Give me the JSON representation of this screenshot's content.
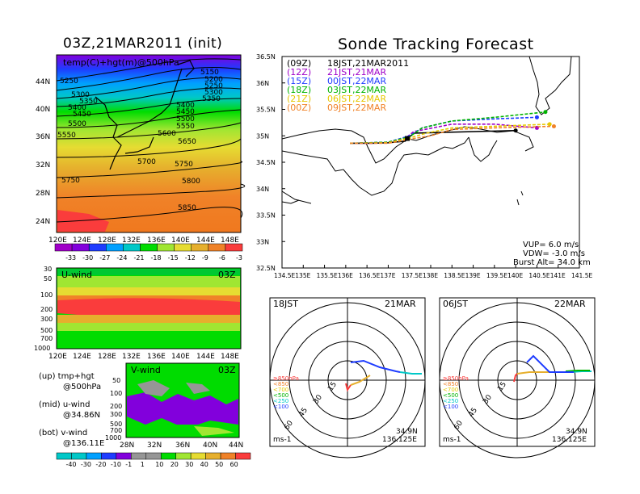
{
  "left_title": "03Z,21MAR2011 (init)",
  "right_title": "Sonde Tracking Forecast",
  "map500": {
    "label": "temp(C)+hgt(m)@500hPa",
    "x_ticks": [
      "120E",
      "124E",
      "128E",
      "132E",
      "136E",
      "140E",
      "144E",
      "148E"
    ],
    "y_ticks": [
      "44N",
      "40N",
      "36N",
      "32N",
      "28N",
      "24N"
    ],
    "contour_labels_left": [
      "5250",
      "5300",
      "5350",
      "5400",
      "5450",
      "5500",
      "5550"
    ],
    "contour_labels_right": [
      "5150",
      "5200",
      "5250",
      "5300",
      "5350",
      "5400",
      "5450",
      "5500",
      "5550"
    ],
    "contour_labels_mid": [
      "5600",
      "5650",
      "5700",
      "5750",
      "5750",
      "5800",
      "5850"
    ],
    "colorbar_labels": [
      "-33",
      "-30",
      "-27",
      "-24",
      "-21",
      "-18",
      "-15",
      "-12",
      "-9",
      "-6",
      "-3"
    ],
    "colors": [
      "#a000c8",
      "#8200dc",
      "#1e3cff",
      "#00a0ff",
      "#00c8c8",
      "#00dc00",
      "#a0e632",
      "#e6dc32",
      "#e6af2d",
      "#f08228",
      "#fa3c3c"
    ]
  },
  "uwind": {
    "label": "U-wind",
    "time": "03Z",
    "y_ticks": [
      "30",
      "50",
      "100",
      "200",
      "300",
      "500",
      "700",
      "1000"
    ],
    "x_ticks": [
      "120E",
      "124E",
      "128E",
      "132E",
      "136E",
      "140E",
      "144E",
      "148E"
    ]
  },
  "vwind": {
    "label": "V-wind",
    "time": "03Z",
    "y_ticks": [
      "50",
      "100",
      "200",
      "300",
      "500",
      "700",
      "1000"
    ],
    "x_ticks": [
      "28N",
      "32N",
      "36N",
      "40N",
      "44N"
    ]
  },
  "notes": [
    {
      "line1": "(up) tmp+hgt",
      "line2": "@500hPa"
    },
    {
      "line1": "(mid) u-wind",
      "line2": "@34.86N"
    },
    {
      "line1": "(bot) v-wind",
      "line2": "@136.11E"
    }
  ],
  "wind_colorbar": {
    "labels": [
      "-40",
      "-30",
      "-20",
      "-10",
      "-1",
      "1",
      "10",
      "20",
      "30",
      "40",
      "50",
      "60"
    ],
    "colors": [
      "#00c8c8",
      "#00a0ff",
      "#1e3cff",
      "#8200dc",
      "#969696",
      "#969696",
      "#00dc00",
      "#a0e632",
      "#e6dc32",
      "#e6af2d",
      "#f08228",
      "#fa3c3c"
    ]
  },
  "track_map": {
    "legend": [
      {
        "code": "(09Z)",
        "text": "18JST,21MAR2011",
        "color": "#000000"
      },
      {
        "code": "(12Z)",
        "text": "21JST,21MAR",
        "color": "#a000c8"
      },
      {
        "code": "(15Z)",
        "text": "00JST,22MAR",
        "color": "#1e3cff"
      },
      {
        "code": "(18Z)",
        "text": "03JST,22MAR",
        "color": "#00b400"
      },
      {
        "code": "(21Z)",
        "text": "06JST,22MAR",
        "color": "#e6c800"
      },
      {
        "code": "(00Z)",
        "text": "09JST,22MAR",
        "color": "#f08228"
      }
    ],
    "lat_ticks": [
      "36.5N",
      "36N",
      "35.5N",
      "35N",
      "34.5N",
      "34N",
      "33.5N",
      "33N",
      "32.5N"
    ],
    "lon_ticks": [
      "134.5E",
      "135E",
      "135.5E",
      "136E",
      "136.5E",
      "137E",
      "137.5E",
      "138E",
      "138.5E",
      "139E",
      "139.5E",
      "140E",
      "140.5E",
      "141E",
      "141.5E"
    ],
    "params": {
      "vup": "VUP=  6.0 m/s",
      "vdw": "VDW= -3.0 m/s",
      "burst": "Burst Alt= 34.0 km"
    }
  },
  "chart_data": [
    {
      "type": "line",
      "title": "Sonde Tracking Forecast",
      "xlabel": "",
      "ylabel": "",
      "xlim": [
        134.5,
        141.5
      ],
      "ylim": [
        32.5,
        36.5
      ],
      "series": [
        {
          "name": "(09Z) 18JST,21MAR2011",
          "x": [
            136.1,
            136.6,
            137.0,
            137.4,
            137.6,
            140.0
          ],
          "y": [
            34.86,
            34.86,
            34.87,
            34.9,
            35.05,
            35.1
          ]
        },
        {
          "name": "(12Z) 21JST,21MAR",
          "x": [
            136.1,
            136.6,
            137.0,
            137.4,
            137.6,
            138.5,
            139.5,
            140.5
          ],
          "y": [
            34.86,
            34.86,
            34.88,
            34.95,
            35.08,
            35.22,
            35.22,
            35.15
          ]
        },
        {
          "name": "(15Z) 00JST,22MAR",
          "x": [
            136.1,
            137.0,
            137.5,
            137.8,
            138.5,
            139.5,
            140.5
          ],
          "y": [
            34.86,
            34.88,
            35.0,
            35.15,
            35.28,
            35.32,
            35.35
          ]
        },
        {
          "name": "(18Z) 03JST,22MAR",
          "x": [
            136.1,
            137.0,
            137.5,
            137.8,
            138.5,
            139.5,
            140.7
          ],
          "y": [
            34.86,
            34.88,
            34.98,
            35.15,
            35.28,
            35.35,
            35.45
          ]
        },
        {
          "name": "(21Z) 06JST,22MAR",
          "x": [
            136.1,
            137.0,
            137.5,
            137.9,
            138.5,
            139.5,
            140.8
          ],
          "y": [
            34.86,
            34.87,
            34.96,
            35.05,
            35.15,
            35.18,
            35.22
          ]
        },
        {
          "name": "(00Z) 09JST,22MAR",
          "x": [
            136.1,
            137.0,
            137.6,
            138.0,
            138.5,
            139.5,
            140.9
          ],
          "y": [
            34.86,
            34.86,
            34.95,
            35.0,
            35.12,
            35.15,
            35.18
          ]
        }
      ]
    },
    {
      "type": "line",
      "title": "18JST 21MAR",
      "corner_labels": {
        "left": "18JST",
        "right": "21MAR",
        "units": "ms-1",
        "lat": "34.9N",
        "lon": "136.125E"
      },
      "ring_labels": [
        "15",
        "30",
        "45",
        "60"
      ],
      "level_legend": [
        "≥850hPa",
        "<850",
        "<700",
        "<500",
        "<250",
        "<100"
      ],
      "series": [
        {
          "name": "<100",
          "x": [
            0
          ],
          "y": [
            0
          ]
        }
      ]
    },
    {
      "type": "line",
      "title": "06JST 22MAR",
      "corner_labels": {
        "left": "06JST",
        "right": "22MAR",
        "units": "ms-1",
        "lat": "34.9N",
        "lon": "136.125E"
      },
      "ring_labels": [
        "15",
        "30",
        "45",
        "60"
      ],
      "level_legend": [
        "≥850hPa",
        "<850",
        "<700",
        "<500",
        "<250",
        "<100"
      ],
      "series": [
        {
          "name": "<100",
          "x": [
            0
          ],
          "y": [
            0
          ]
        }
      ]
    }
  ]
}
